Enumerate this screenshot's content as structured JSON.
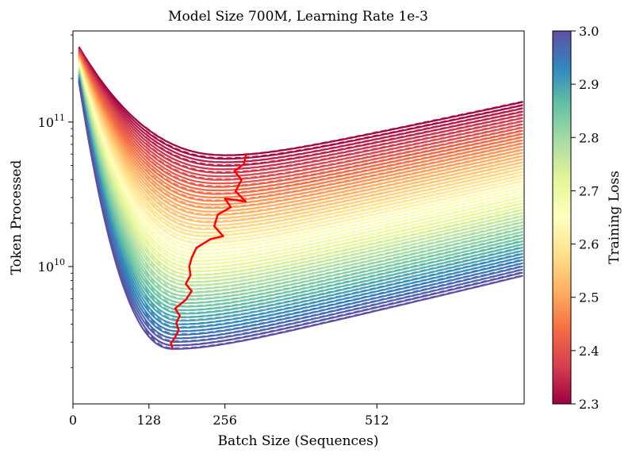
{
  "chart_data": {
    "type": "line",
    "title": "Model Size 700M, Learning Rate 1e-3",
    "xlabel": "Batch Size (Sequences)",
    "ylabel": "Token Processed",
    "xlim": [
      0,
      760
    ],
    "ylim_log10": [
      9.05,
      11.63
    ],
    "yscale": "log",
    "x_ticks": [
      {
        "value": 0,
        "label": "0"
      },
      {
        "value": 128,
        "label": "128"
      },
      {
        "value": 256,
        "label": "256"
      },
      {
        "value": 512,
        "label": "512"
      }
    ],
    "y_major_ticks": [
      {
        "log10": 10,
        "base": "10",
        "exp": "10"
      },
      {
        "log10": 11,
        "base": "10",
        "exp": "11"
      }
    ],
    "colorbar": {
      "label": "Training Loss",
      "range": [
        2.3,
        3.0
      ],
      "ticks": [
        "2.3",
        "2.4",
        "2.5",
        "2.6",
        "2.7",
        "2.8",
        "2.9",
        "3.0"
      ],
      "colors": [
        "#9e0142",
        "#d53e4f",
        "#f46d43",
        "#fdae61",
        "#fee08b",
        "#ffffbf",
        "#e6f598",
        "#abdda4",
        "#66c2a5",
        "#3288bd",
        "#5e4fa2"
      ]
    },
    "curve_family": {
      "loss_range": [
        2.3,
        3.0
      ],
      "count": 56,
      "x_range": [
        10,
        760
      ],
      "params_at_loss_2_3": {
        "log10_min": 10.77,
        "x_min": 260,
        "left_rise": 0.75,
        "right_slope": 0.00065
      },
      "params_at_loss_3_0": {
        "log10_min": 9.43,
        "x_min": 170,
        "left_rise": 1.85,
        "right_slope": 0.00075
      },
      "dashed_segment_start_x": 120
    },
    "optimal_path": {
      "name": "optimal batch size path",
      "color": "#ff0000",
      "points": [
        {
          "x": 168,
          "y_log10": 9.43
        },
        {
          "x": 165,
          "y_log10": 9.47
        },
        {
          "x": 172,
          "y_log10": 9.51
        },
        {
          "x": 178,
          "y_log10": 9.56
        },
        {
          "x": 174,
          "y_log10": 9.61
        },
        {
          "x": 180,
          "y_log10": 9.66
        },
        {
          "x": 172,
          "y_log10": 9.71
        },
        {
          "x": 190,
          "y_log10": 9.77
        },
        {
          "x": 200,
          "y_log10": 9.83
        },
        {
          "x": 190,
          "y_log10": 9.88
        },
        {
          "x": 198,
          "y_log10": 9.94
        },
        {
          "x": 196,
          "y_log10": 10.0
        },
        {
          "x": 200,
          "y_log10": 10.06
        },
        {
          "x": 208,
          "y_log10": 10.13
        },
        {
          "x": 232,
          "y_log10": 10.19
        },
        {
          "x": 253,
          "y_log10": 10.21
        },
        {
          "x": 238,
          "y_log10": 10.28
        },
        {
          "x": 244,
          "y_log10": 10.36
        },
        {
          "x": 266,
          "y_log10": 10.41
        },
        {
          "x": 256,
          "y_log10": 10.47
        },
        {
          "x": 291,
          "y_log10": 10.45
        },
        {
          "x": 274,
          "y_log10": 10.52
        },
        {
          "x": 284,
          "y_log10": 10.6
        },
        {
          "x": 272,
          "y_log10": 10.66
        },
        {
          "x": 288,
          "y_log10": 10.71
        },
        {
          "x": 292,
          "y_log10": 10.78
        }
      ]
    }
  }
}
